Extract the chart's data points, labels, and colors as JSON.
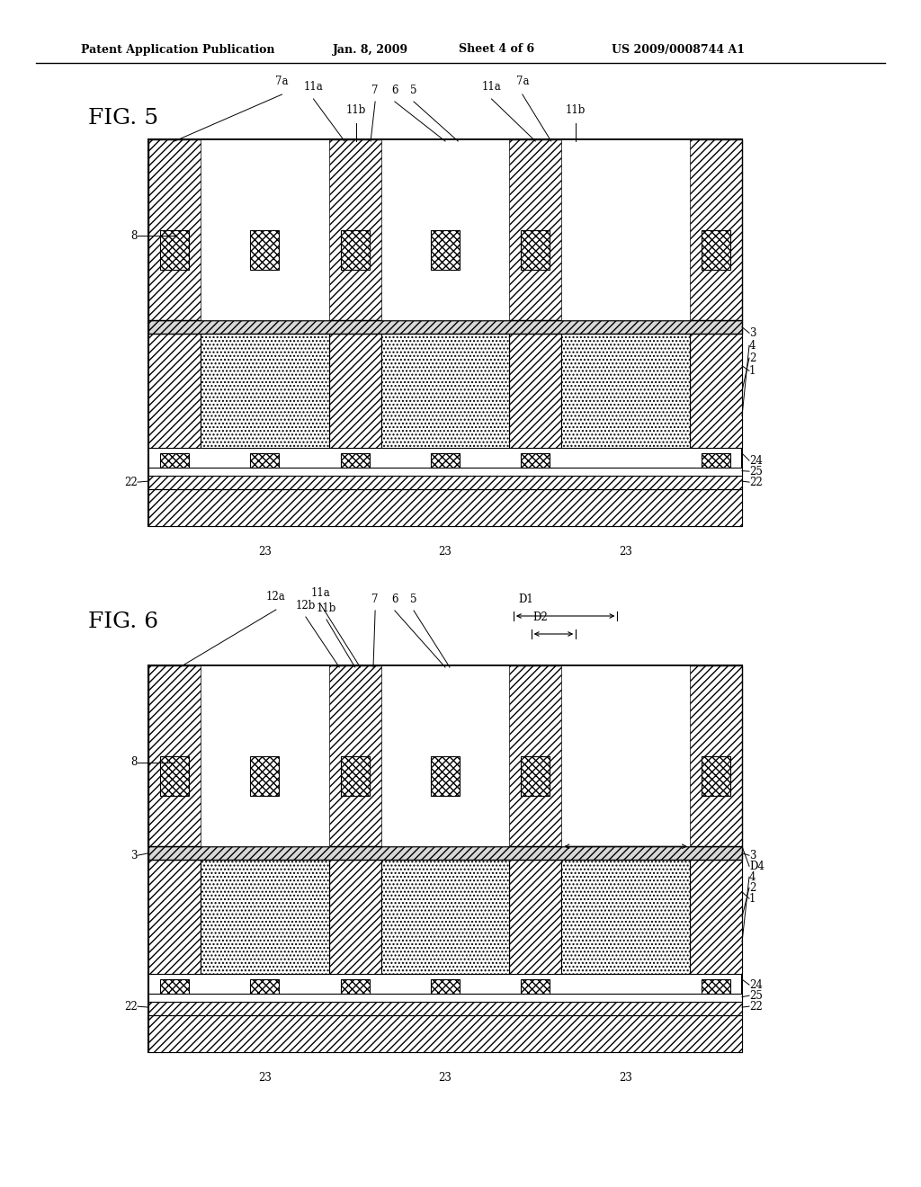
{
  "title_header": "Patent Application Publication",
  "date_header": "Jan. 8, 2009",
  "sheet_header": "Sheet 4 of 6",
  "patent_header": "US 2009/0008744 A1",
  "fig5_label": "FIG. 5",
  "fig6_label": "FIG. 6",
  "bg_color": "#ffffff",
  "line_color": "#000000"
}
